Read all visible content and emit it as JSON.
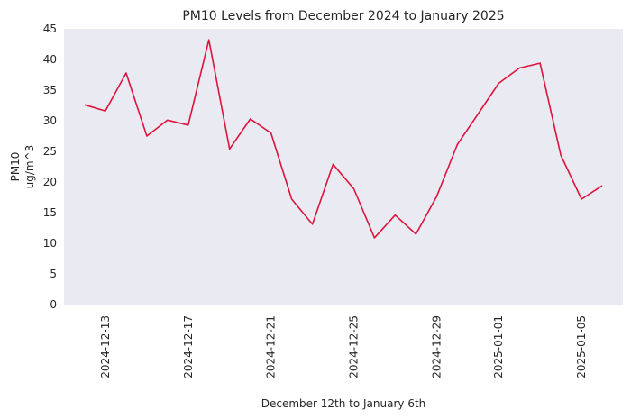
{
  "chart_data": {
    "type": "line",
    "title": "PM10 Levels from December 2024 to January 2025",
    "xlabel": "December 12th to January 6th",
    "ylabel": [
      "PM10",
      "ug/m^3"
    ],
    "x_start": "2024-12-12",
    "x_end": "2025-01-06",
    "xlim": [
      "2024-12-11",
      "2025-01-07"
    ],
    "ylim": [
      0,
      45
    ],
    "yticks": [
      0,
      5,
      10,
      15,
      20,
      25,
      30,
      35,
      40,
      45
    ],
    "xticks": [
      "2024-12-13",
      "2024-12-17",
      "2024-12-21",
      "2024-12-25",
      "2024-12-29",
      "2025-01-01",
      "2025-01-05"
    ],
    "grid": false,
    "background": "#eaeaf2",
    "series": [
      {
        "color": "#dc143c",
        "x": [
          "2024-12-12",
          "2024-12-13",
          "2024-12-14",
          "2024-12-15",
          "2024-12-16",
          "2024-12-17",
          "2024-12-18",
          "2024-12-19",
          "2024-12-20",
          "2024-12-21",
          "2024-12-22",
          "2024-12-23",
          "2024-12-24",
          "2024-12-25",
          "2024-12-26",
          "2024-12-27",
          "2024-12-28",
          "2024-12-29",
          "2024-12-30",
          "2024-12-31",
          "2025-01-01",
          "2025-01-02",
          "2025-01-03",
          "2025-01-04",
          "2025-01-05",
          "2025-01-06"
        ],
        "values": [
          32.6,
          31.6,
          37.8,
          27.5,
          30.1,
          29.3,
          43.2,
          25.4,
          30.3,
          28.0,
          17.2,
          13.1,
          22.9,
          18.9,
          10.9,
          14.6,
          11.5,
          17.6,
          26.1,
          31.1,
          36.1,
          38.6,
          39.4,
          24.4,
          17.2,
          19.4
        ]
      }
    ]
  }
}
